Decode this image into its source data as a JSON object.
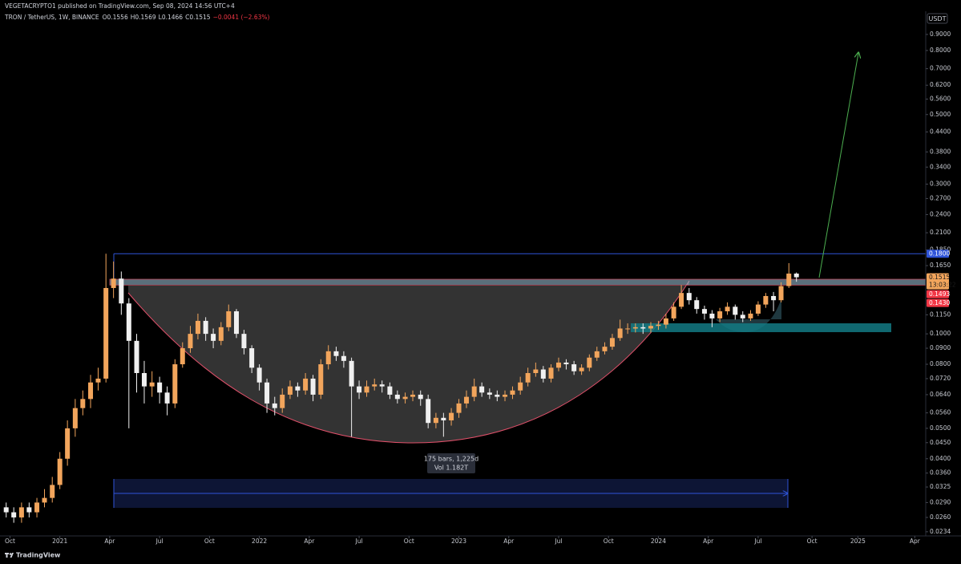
{
  "header": {
    "publisher": "VEGETACRYPTO1 published on TradingView.com, Sep 08, 2024 14:56 UTC+4",
    "symbol": "TRON / TetherUS, 1W, BINANCE",
    "ohlc": [
      {
        "key": "O",
        "value": 0.1556
      },
      {
        "key": "H",
        "value": 0.1569
      },
      {
        "key": "L",
        "value": 0.1466
      },
      {
        "key": "C",
        "value": 0.1515
      }
    ],
    "change": {
      "value": -0.0041,
      "label": "−0.0041 (−2.63%)"
    },
    "currency": "USDT"
  },
  "footer": {
    "brand": "TradingView"
  },
  "chart_data": {
    "type": "candlestick",
    "log_scale": true,
    "grid": false,
    "up_color": "#f2a55c",
    "down_color": "#f0f0f0",
    "xlim": [
      2020.7,
      2025.34
    ],
    "ylim": [
      0.0227,
      1.03
    ],
    "xticks": [
      {
        "value": 2020.75,
        "label": "Oct"
      },
      2021,
      {
        "value": 2021.25,
        "label": "Apr"
      },
      {
        "value": 2021.5,
        "label": "Jul"
      },
      {
        "value": 2021.75,
        "label": "Oct"
      },
      2022,
      {
        "value": 2022.25,
        "label": "Apr"
      },
      {
        "value": 2022.5,
        "label": "Jul"
      },
      {
        "value": 2022.75,
        "label": "Oct"
      },
      2023,
      {
        "value": 2023.25,
        "label": "Apr"
      },
      {
        "value": 2023.5,
        "label": "Jul"
      },
      {
        "value": 2023.75,
        "label": "Oct"
      },
      2024,
      {
        "value": 2024.25,
        "label": "Apr"
      },
      {
        "value": 2024.5,
        "label": "Jul"
      },
      {
        "value": 2024.77,
        "label": "Oct"
      },
      2025,
      {
        "value": 2025.285,
        "label": "Apr"
      }
    ],
    "yticks": [
      {
        "value": 0.9,
        "label": "0.9000"
      },
      {
        "value": 0.8,
        "label": "0.8000"
      },
      {
        "value": 0.7,
        "label": "0.7000"
      },
      {
        "value": 0.62,
        "label": "0.6200"
      },
      {
        "value": 0.56,
        "label": "0.5600"
      },
      {
        "value": 0.5,
        "label": "0.5000"
      },
      {
        "value": 0.44,
        "label": "0.4400"
      },
      {
        "value": 0.38,
        "label": "0.3800"
      },
      {
        "value": 0.34,
        "label": "0.3400"
      },
      {
        "value": 0.3,
        "label": "0.3000"
      },
      {
        "value": 0.27,
        "label": "0.2700"
      },
      {
        "value": 0.24,
        "label": "0.2400"
      },
      {
        "value": 0.21,
        "label": "0.2100"
      },
      {
        "value": 0.185,
        "label": "0.1850"
      },
      {
        "value": 0.165,
        "label": "0.1650"
      },
      {
        "value": 0.115,
        "label": "0.1150"
      },
      {
        "value": 0.1,
        "label": "0.1000"
      },
      {
        "value": 0.09,
        "label": "0.0900"
      },
      {
        "value": 0.08,
        "label": "0.0800"
      },
      {
        "value": 0.072,
        "label": "0.0720"
      },
      {
        "value": 0.064,
        "label": "0.0640"
      },
      {
        "value": 0.056,
        "label": "0.0560"
      },
      {
        "value": 0.05,
        "label": "0.0500"
      },
      {
        "value": 0.045,
        "label": "0.0450"
      },
      {
        "value": 0.04,
        "label": "0.0400"
      },
      {
        "value": 0.036,
        "label": "0.0360"
      },
      {
        "value": 0.0325,
        "label": "0.0325"
      },
      {
        "value": 0.029,
        "label": "0.0290"
      },
      {
        "value": 0.026,
        "label": "0.0260"
      },
      {
        "value": 0.0234,
        "label": "0.0234"
      }
    ],
    "price_labels": [
      {
        "value": 0.18,
        "label": "0.1800",
        "color": "#2f54d9",
        "text_color": "#ffffff"
      },
      {
        "value": 0.1515,
        "label": "0.1515",
        "color": "#f2a55c",
        "text_color": "#1a1a1a",
        "countdown": "13:03:22"
      },
      {
        "value": 0.1493,
        "label": "0.1493",
        "color": "#f23645",
        "text_color": "#ffffff"
      },
      {
        "value": 0.143,
        "label": "0.1430",
        "color": "#f23645",
        "text_color": "#ffffff"
      }
    ],
    "measure": {
      "bars_label": "175 bars, 1,225d",
      "volume_label": "Vol 1.182T"
    },
    "x": [
      2020.731,
      2020.769,
      2020.808,
      2020.846,
      2020.885,
      2020.923,
      2020.962,
      2021.0,
      2021.038,
      2021.077,
      2021.115,
      2021.154,
      2021.192,
      2021.231,
      2021.269,
      2021.308,
      2021.346,
      2021.385,
      2021.423,
      2021.462,
      2021.5,
      2021.538,
      2021.577,
      2021.615,
      2021.654,
      2021.692,
      2021.731,
      2021.769,
      2021.808,
      2021.846,
      2021.885,
      2021.923,
      2021.962,
      2022.0,
      2022.038,
      2022.077,
      2022.115,
      2022.154,
      2022.192,
      2022.231,
      2022.269,
      2022.308,
      2022.346,
      2022.385,
      2022.423,
      2022.462,
      2022.5,
      2022.538,
      2022.577,
      2022.615,
      2022.654,
      2022.692,
      2022.731,
      2022.769,
      2022.808,
      2022.846,
      2022.885,
      2022.923,
      2022.962,
      2023.0,
      2023.038,
      2023.077,
      2023.115,
      2023.154,
      2023.192,
      2023.231,
      2023.269,
      2023.308,
      2023.346,
      2023.385,
      2023.423,
      2023.462,
      2023.5,
      2023.538,
      2023.577,
      2023.615,
      2023.654,
      2023.692,
      2023.731,
      2023.769,
      2023.808,
      2023.846,
      2023.885,
      2023.923,
      2023.962,
      2024.0,
      2024.038,
      2024.077,
      2024.115,
      2024.154,
      2024.192,
      2024.231,
      2024.269,
      2024.308,
      2024.346,
      2024.385,
      2024.423,
      2024.462,
      2024.5,
      2024.538,
      2024.577,
      2024.615,
      2024.654,
      2024.692
    ],
    "open": [
      0.028,
      0.027,
      0.026,
      0.028,
      0.027,
      0.029,
      0.03,
      0.033,
      0.04,
      0.05,
      0.058,
      0.062,
      0.07,
      0.072,
      0.14,
      0.15,
      0.125,
      0.095,
      0.075,
      0.068,
      0.07,
      0.065,
      0.06,
      0.08,
      0.09,
      0.1,
      0.11,
      0.1,
      0.095,
      0.105,
      0.118,
      0.1,
      0.09,
      0.078,
      0.07,
      0.06,
      0.058,
      0.064,
      0.068,
      0.066,
      0.072,
      0.064,
      0.08,
      0.088,
      0.085,
      0.082,
      0.068,
      0.065,
      0.068,
      0.069,
      0.068,
      0.064,
      0.062,
      0.063,
      0.064,
      0.062,
      0.052,
      0.054,
      0.053,
      0.056,
      0.06,
      0.063,
      0.068,
      0.065,
      0.064,
      0.063,
      0.064,
      0.066,
      0.07,
      0.075,
      0.077,
      0.072,
      0.078,
      0.081,
      0.08,
      0.076,
      0.078,
      0.084,
      0.088,
      0.091,
      0.097,
      0.104,
      0.104,
      0.105,
      0.104,
      0.106,
      0.107,
      0.112,
      0.122,
      0.135,
      0.128,
      0.12,
      0.116,
      0.112,
      0.118,
      0.122,
      0.115,
      0.112,
      0.116,
      0.124,
      0.132,
      0.128,
      0.142,
      0.1556
    ],
    "high": [
      0.029,
      0.028,
      0.029,
      0.029,
      0.03,
      0.032,
      0.035,
      0.042,
      0.053,
      0.062,
      0.066,
      0.074,
      0.078,
      0.18,
      0.17,
      0.158,
      0.13,
      0.1,
      0.082,
      0.076,
      0.073,
      0.068,
      0.083,
      0.094,
      0.106,
      0.116,
      0.113,
      0.104,
      0.109,
      0.124,
      0.12,
      0.103,
      0.092,
      0.08,
      0.072,
      0.063,
      0.067,
      0.071,
      0.07,
      0.075,
      0.074,
      0.083,
      0.092,
      0.091,
      0.088,
      0.084,
      0.071,
      0.071,
      0.072,
      0.071,
      0.07,
      0.066,
      0.065,
      0.066,
      0.066,
      0.064,
      0.056,
      0.056,
      0.058,
      0.062,
      0.066,
      0.072,
      0.07,
      0.067,
      0.066,
      0.066,
      0.068,
      0.073,
      0.078,
      0.081,
      0.079,
      0.08,
      0.084,
      0.083,
      0.082,
      0.08,
      0.086,
      0.091,
      0.094,
      0.1,
      0.111,
      0.108,
      0.108,
      0.108,
      0.109,
      0.11,
      0.116,
      0.126,
      0.143,
      0.14,
      0.131,
      0.123,
      0.119,
      0.121,
      0.126,
      0.124,
      0.118,
      0.119,
      0.127,
      0.135,
      0.136,
      0.146,
      0.168,
      0.1569
    ],
    "low": [
      0.026,
      0.025,
      0.025,
      0.026,
      0.026,
      0.028,
      0.029,
      0.032,
      0.038,
      0.047,
      0.055,
      0.058,
      0.066,
      0.07,
      0.13,
      0.115,
      0.05,
      0.065,
      0.06,
      0.063,
      0.06,
      0.055,
      0.058,
      0.078,
      0.087,
      0.096,
      0.095,
      0.09,
      0.092,
      0.102,
      0.097,
      0.086,
      0.075,
      0.066,
      0.056,
      0.055,
      0.056,
      0.062,
      0.063,
      0.064,
      0.061,
      0.062,
      0.077,
      0.082,
      0.078,
      0.047,
      0.062,
      0.063,
      0.066,
      0.065,
      0.062,
      0.06,
      0.06,
      0.061,
      0.059,
      0.05,
      0.05,
      0.047,
      0.051,
      0.054,
      0.058,
      0.061,
      0.063,
      0.062,
      0.061,
      0.061,
      0.062,
      0.064,
      0.068,
      0.073,
      0.07,
      0.07,
      0.076,
      0.077,
      0.074,
      0.074,
      0.076,
      0.082,
      0.086,
      0.089,
      0.095,
      0.1,
      0.101,
      0.1,
      0.101,
      0.103,
      0.104,
      0.11,
      0.12,
      0.124,
      0.116,
      0.111,
      0.105,
      0.109,
      0.115,
      0.111,
      0.109,
      0.11,
      0.114,
      0.121,
      0.118,
      0.126,
      0.14,
      0.1466
    ],
    "close": [
      0.027,
      0.026,
      0.028,
      0.027,
      0.029,
      0.03,
      0.033,
      0.04,
      0.05,
      0.058,
      0.062,
      0.07,
      0.072,
      0.14,
      0.15,
      0.125,
      0.095,
      0.075,
      0.068,
      0.07,
      0.065,
      0.06,
      0.08,
      0.09,
      0.1,
      0.11,
      0.1,
      0.095,
      0.105,
      0.118,
      0.1,
      0.09,
      0.078,
      0.07,
      0.06,
      0.058,
      0.064,
      0.068,
      0.066,
      0.072,
      0.064,
      0.08,
      0.088,
      0.085,
      0.082,
      0.068,
      0.065,
      0.068,
      0.069,
      0.068,
      0.064,
      0.062,
      0.063,
      0.064,
      0.062,
      0.052,
      0.054,
      0.053,
      0.056,
      0.06,
      0.063,
      0.068,
      0.065,
      0.064,
      0.063,
      0.064,
      0.066,
      0.07,
      0.075,
      0.077,
      0.072,
      0.078,
      0.081,
      0.08,
      0.076,
      0.078,
      0.084,
      0.088,
      0.091,
      0.097,
      0.104,
      0.104,
      0.105,
      0.104,
      0.106,
      0.107,
      0.112,
      0.122,
      0.135,
      0.128,
      0.12,
      0.116,
      0.112,
      0.118,
      0.122,
      0.115,
      0.112,
      0.116,
      0.124,
      0.132,
      0.128,
      0.142,
      0.1556,
      0.1515
    ]
  }
}
